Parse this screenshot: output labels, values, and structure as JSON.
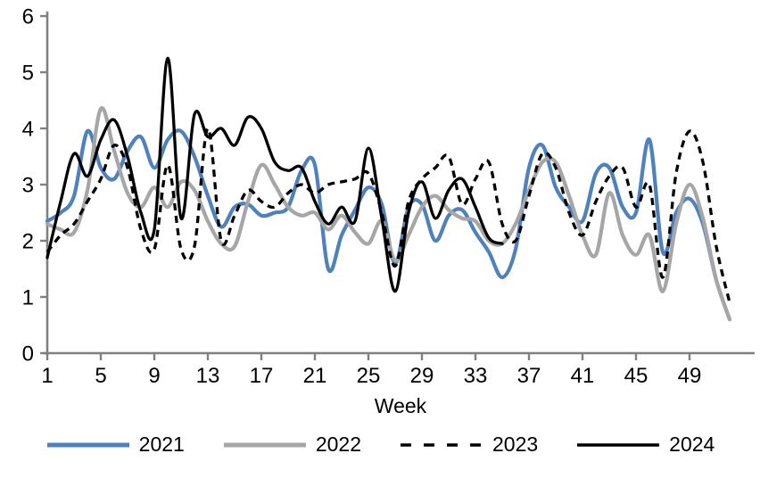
{
  "chart_data": {
    "type": "line",
    "title": "",
    "xlabel": "Week",
    "ylabel": "",
    "xlim": [
      1,
      52
    ],
    "ylim": [
      0,
      6
    ],
    "yticks": [
      0,
      1,
      2,
      3,
      4,
      5,
      6
    ],
    "x_tick_weeks": [
      1,
      5,
      9,
      13,
      17,
      21,
      25,
      29,
      33,
      37,
      41,
      45,
      49
    ],
    "grid": false,
    "legend_position": "bottom",
    "axis_color": "#808080",
    "series": [
      {
        "name": "2021",
        "color": "#4F81BD",
        "style": "solid",
        "x_start_week": 1,
        "values": [
          2.35,
          2.5,
          2.8,
          3.95,
          3.3,
          3.1,
          3.6,
          3.85,
          3.3,
          3.8,
          3.95,
          3.5,
          2.8,
          2.25,
          2.6,
          2.65,
          2.45,
          2.5,
          2.6,
          3.25,
          3.35,
          1.5,
          2.1,
          2.55,
          2.95,
          2.65,
          1.6,
          2.6,
          2.65,
          2.0,
          2.45,
          2.55,
          2.15,
          1.8,
          1.35,
          1.85,
          3.3,
          3.7,
          2.95,
          2.6,
          2.35,
          3.2,
          3.3,
          2.6,
          2.5,
          3.8,
          1.8,
          2.5,
          2.75,
          2.3,
          1.3,
          0.6
        ]
      },
      {
        "name": "2022",
        "color": "#A6A6A6",
        "style": "solid",
        "x_start_week": 1,
        "values": [
          2.3,
          2.2,
          2.15,
          2.9,
          4.35,
          3.6,
          2.85,
          2.6,
          2.95,
          2.6,
          3.05,
          2.9,
          2.35,
          1.95,
          1.9,
          2.7,
          3.35,
          3.0,
          2.6,
          2.45,
          2.5,
          2.2,
          2.45,
          2.15,
          1.95,
          2.35,
          1.65,
          2.1,
          2.6,
          2.8,
          2.55,
          2.4,
          2.35,
          2.0,
          1.95,
          2.3,
          2.9,
          3.4,
          3.4,
          2.8,
          2.1,
          1.75,
          2.85,
          2.1,
          1.75,
          2.1,
          1.1,
          2.3,
          3.0,
          2.4,
          1.3,
          0.6
        ]
      },
      {
        "name": "2023",
        "color": "#000000",
        "style": "dashed",
        "x_start_week": 1,
        "values": [
          1.8,
          2.1,
          2.3,
          2.7,
          3.1,
          3.7,
          3.3,
          2.2,
          1.85,
          3.35,
          1.85,
          1.9,
          4.0,
          2.0,
          2.45,
          2.9,
          2.7,
          2.6,
          2.85,
          3.0,
          2.85,
          3.0,
          3.05,
          3.1,
          3.2,
          2.5,
          1.55,
          2.7,
          3.1,
          3.3,
          3.5,
          2.65,
          3.1,
          3.4,
          2.3,
          2.0,
          2.8,
          3.55,
          3.3,
          2.5,
          2.1,
          2.7,
          3.15,
          3.3,
          2.6,
          3.0,
          1.35,
          3.2,
          3.95,
          3.4,
          1.9,
          0.9
        ]
      },
      {
        "name": "2024",
        "color": "#000000",
        "style": "solid",
        "x_start_week": 1,
        "values": [
          1.7,
          2.7,
          3.55,
          3.15,
          3.8,
          4.15,
          3.5,
          2.5,
          2.2,
          5.25,
          2.4,
          4.25,
          3.85,
          4.0,
          3.7,
          4.2,
          4.0,
          3.4,
          3.25,
          3.3,
          2.7,
          2.3,
          2.6,
          2.35,
          3.65,
          2.4,
          1.1,
          2.5,
          3.05,
          2.4,
          2.9,
          3.1,
          2.6,
          2.05,
          1.95
        ]
      }
    ]
  }
}
